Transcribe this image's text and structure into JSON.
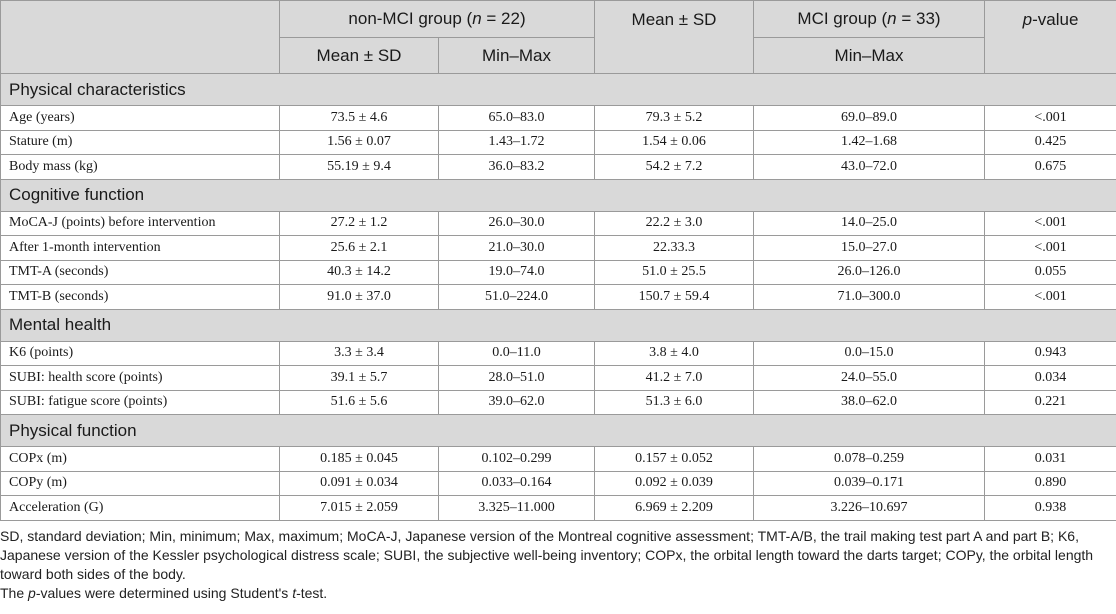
{
  "header": {
    "group1": "non-MCI group (",
    "group1_n": "n",
    "group1_rest": " = 22)",
    "mid_col": "Mean ± SD",
    "group2": "MCI group (",
    "group2_n": "n",
    "group2_rest": " = 33)",
    "p_italic": "p",
    "p_rest": "-value",
    "sub_mean": "Mean ± SD",
    "sub_minmax": "Min–Max",
    "sub_minmax2": "Min–Max"
  },
  "sections": [
    {
      "title": "Physical characteristics",
      "rows": [
        {
          "label": "Age (years)",
          "c1": "73.5 ± 4.6",
          "c2": "65.0–83.0",
          "c3": "79.3 ± 5.2",
          "c4": "69.0–89.0",
          "p": "<.001"
        },
        {
          "label": "Stature (m)",
          "c1": "1.56 ± 0.07",
          "c2": "1.43–1.72",
          "c3": "1.54 ± 0.06",
          "c4": "1.42–1.68",
          "p": "0.425"
        },
        {
          "label": "Body mass (kg)",
          "c1": "55.19 ± 9.4",
          "c2": "36.0–83.2",
          "c3": "54.2 ± 7.2",
          "c4": "43.0–72.0",
          "p": "0.675"
        }
      ]
    },
    {
      "title": "Cognitive function",
      "rows": [
        {
          "label": "MoCA-J (points) before intervention",
          "c1": "27.2 ± 1.2",
          "c2": "26.0–30.0",
          "c3": "22.2 ± 3.0",
          "c4": "14.0–25.0",
          "p": "<.001"
        },
        {
          "label": "After 1-month intervention",
          "c1": "25.6 ± 2.1",
          "c2": "21.0–30.0",
          "c3": "22.33.3",
          "c4": "15.0–27.0",
          "p": "<.001"
        },
        {
          "label": "TMT-A (seconds)",
          "c1": "40.3 ± 14.2",
          "c2": "19.0–74.0",
          "c3": "51.0 ± 25.5",
          "c4": "26.0–126.0",
          "p": "0.055"
        },
        {
          "label": "TMT-B (seconds)",
          "c1": "91.0 ± 37.0",
          "c2": "51.0–224.0",
          "c3": "150.7 ± 59.4",
          "c4": "71.0–300.0",
          "p": "<.001"
        }
      ]
    },
    {
      "title": "Mental health",
      "rows": [
        {
          "label": "K6 (points)",
          "c1": "3.3 ± 3.4",
          "c2": "0.0–11.0",
          "c3": "3.8 ± 4.0",
          "c4": "0.0–15.0",
          "p": "0.943"
        },
        {
          "label": "SUBI: health score (points)",
          "c1": "39.1 ± 5.7",
          "c2": "28.0–51.0",
          "c3": "41.2 ± 7.0",
          "c4": "24.0–55.0",
          "p": "0.034"
        },
        {
          "label": "SUBI: fatigue score (points)",
          "c1": "51.6 ± 5.6",
          "c2": "39.0–62.0",
          "c3": "51.3 ± 6.0",
          "c4": "38.0–62.0",
          "p": "0.221"
        }
      ]
    },
    {
      "title": "Physical function",
      "rows": [
        {
          "label": "COPx (m)",
          "c1": "0.185 ± 0.045",
          "c2": "0.102–0.299",
          "c3": "0.157 ± 0.052",
          "c4": "0.078–0.259",
          "p": "0.031"
        },
        {
          "label": "COPy (m)",
          "c1": "0.091 ± 0.034",
          "c2": "0.033–0.164",
          "c3": "0.092 ± 0.039",
          "c4": "0.039–0.171",
          "p": "0.890"
        },
        {
          "label": "Acceleration (G)",
          "c1": "7.015 ± 2.059",
          "c2": "3.325–11.000",
          "c3": "6.969 ± 2.209",
          "c4": "3.226–10.697",
          "p": "0.938"
        }
      ]
    }
  ],
  "footnote": {
    "line1": "SD, standard deviation; Min, minimum; Max, maximum; MoCA-J, Japanese version of the Montreal cognitive assessment; TMT-A/B, the trail making test part A and part B; K6, Japanese version of the Kessler psychological distress scale; SUBI, the subjective well-being inventory; COPx, the orbital length toward the darts target; COPy, the orbital length toward both sides of the body.",
    "line2_p": "p",
    "line2_mid": "-values were determined using Student's ",
    "line2_t": "t",
    "line2_end": "-test.",
    "line2_start": "The "
  }
}
